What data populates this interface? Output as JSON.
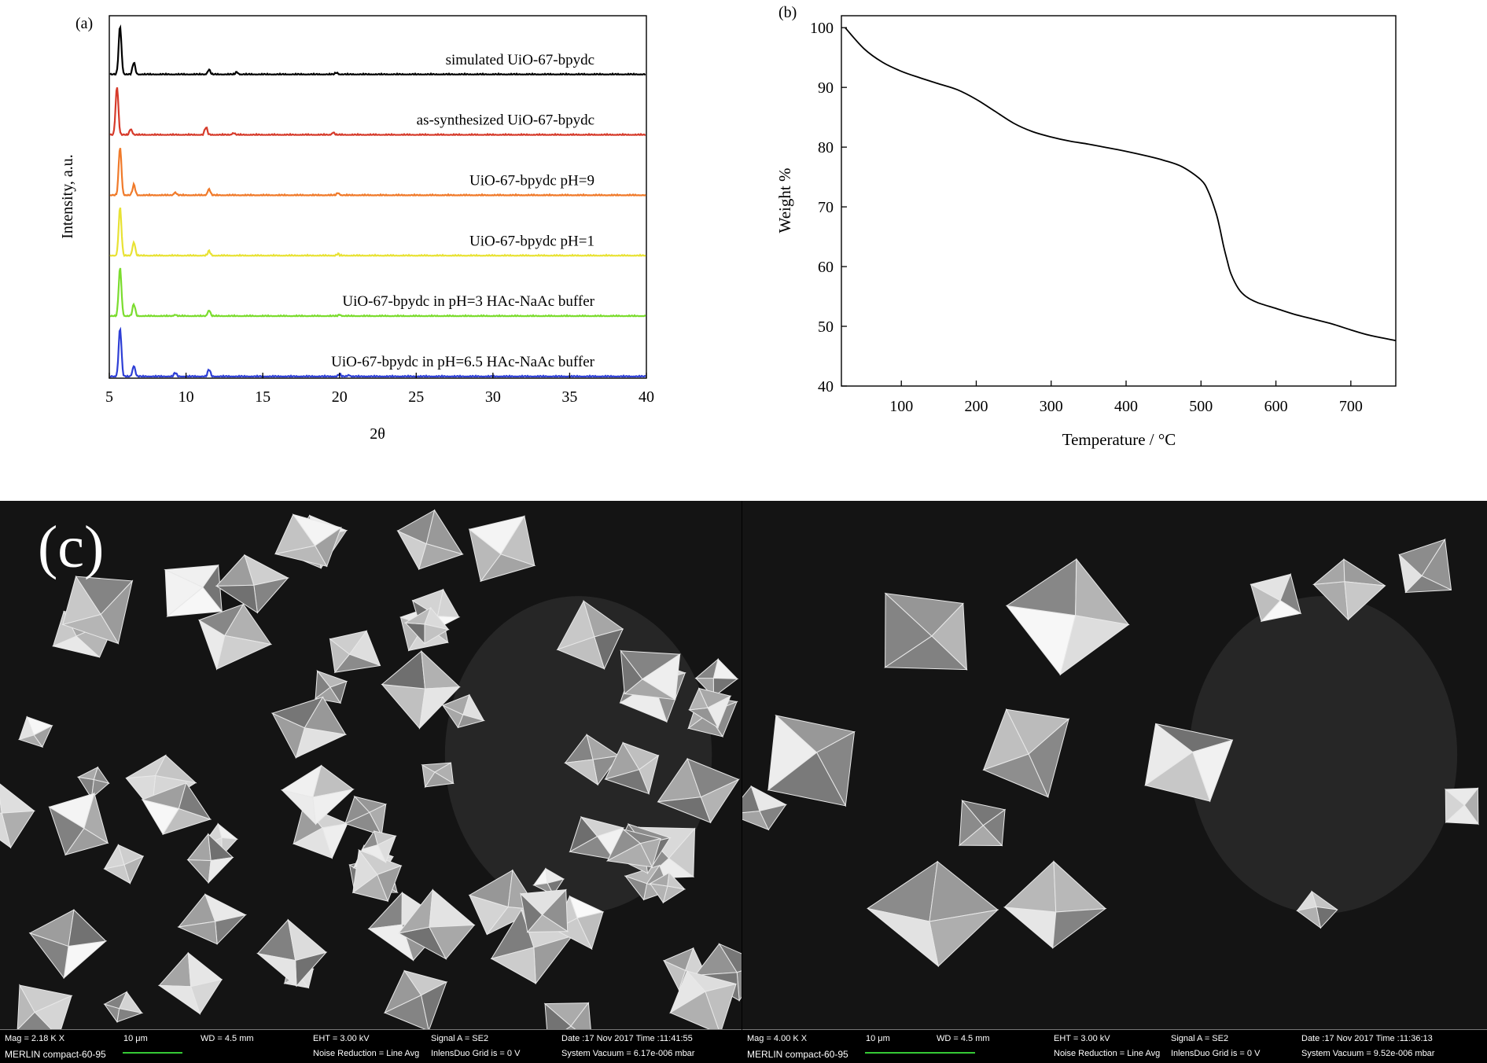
{
  "chart_data": [
    {
      "panel_label": "(a)",
      "type": "line",
      "xlabel": "2θ",
      "ylabel": "Intensity, a.u.",
      "xlim": [
        5,
        40
      ],
      "xticks": [
        5,
        10,
        15,
        20,
        25,
        30,
        35,
        40
      ],
      "grid": false,
      "series": [
        {
          "name": "simulated UiO-67-bpydc",
          "color": "#000000",
          "peaks": [
            [
              5.7,
              1.0
            ],
            [
              6.6,
              0.25
            ],
            [
              11.5,
              0.1
            ],
            [
              13.3,
              0.05
            ],
            [
              19.8,
              0.04
            ]
          ]
        },
        {
          "name": "as-synthesized UiO-67-bpydc",
          "color": "#d63a2a",
          "peaks": [
            [
              5.5,
              1.0
            ],
            [
              6.4,
              0.12
            ],
            [
              11.3,
              0.16
            ],
            [
              13.1,
              0.04
            ],
            [
              19.6,
              0.05
            ]
          ]
        },
        {
          "name": "UiO-67-bpydc pH=9",
          "color": "#f07a2a",
          "peaks": [
            [
              5.7,
              1.0
            ],
            [
              6.6,
              0.22
            ],
            [
              9.3,
              0.06
            ],
            [
              11.5,
              0.13
            ],
            [
              19.9,
              0.05
            ]
          ]
        },
        {
          "name": "UiO-67-bpydc pH=1",
          "color": "#e8e234",
          "peaks": [
            [
              5.7,
              1.0
            ],
            [
              6.6,
              0.28
            ],
            [
              11.5,
              0.1
            ],
            [
              19.9,
              0.04
            ]
          ]
        },
        {
          "name": "UiO-67-bpydc in pH=3 HAc-NaAc buffer",
          "color": "#7bdc2e",
          "peaks": [
            [
              5.7,
              1.0
            ],
            [
              6.6,
              0.25
            ],
            [
              9.3,
              0.03
            ],
            [
              11.5,
              0.12
            ],
            [
              20.0,
              0.03
            ]
          ]
        },
        {
          "name": "UiO-67-bpydc in pH=6.5 HAc-NaAc buffer",
          "color": "#2e3fd6",
          "peaks": [
            [
              5.7,
              1.0
            ],
            [
              6.6,
              0.22
            ],
            [
              9.3,
              0.08
            ],
            [
              11.5,
              0.15
            ],
            [
              20.0,
              0.05
            ],
            [
              20.6,
              0.03
            ]
          ]
        }
      ]
    },
    {
      "panel_label": "(b)",
      "type": "line",
      "xlabel": "Temperature / °C",
      "ylabel": "Weight %",
      "xlim": [
        20,
        760
      ],
      "ylim": [
        40,
        102
      ],
      "xticks": [
        100,
        200,
        300,
        400,
        500,
        600,
        700
      ],
      "yticks": [
        40,
        50,
        60,
        70,
        80,
        90,
        100
      ],
      "grid": false,
      "series": [
        {
          "name": "",
          "color": "#000000",
          "x": [
            25,
            50,
            75,
            100,
            125,
            150,
            175,
            200,
            225,
            250,
            275,
            300,
            325,
            350,
            375,
            400,
            425,
            450,
            475,
            500,
            510,
            520,
            525,
            530,
            535,
            540,
            550,
            560,
            575,
            600,
            625,
            650,
            675,
            700,
            725,
            760
          ],
          "y": [
            100,
            96.5,
            94.2,
            92.7,
            91.6,
            90.6,
            89.6,
            88.0,
            86.0,
            84.0,
            82.6,
            81.7,
            81.0,
            80.5,
            79.9,
            79.3,
            78.6,
            77.8,
            76.7,
            74.5,
            72.5,
            69.0,
            66.5,
            63.5,
            61.0,
            58.8,
            56.3,
            55.0,
            54.0,
            53.0,
            52.0,
            51.2,
            50.4,
            49.4,
            48.5,
            47.6
          ]
        }
      ]
    }
  ],
  "sem": {
    "panel_label": "(c)",
    "left": {
      "mag": "Mag =   2.18 K X",
      "scale": "10 μm",
      "wd": "WD =   4.5 mm",
      "eht": "EHT =   3.00 kV",
      "signal": "Signal A = SE2",
      "date": "Date :17 Nov 2017  Time :11:41:55",
      "instrument": "MERLIN compact-60-95",
      "noise": "Noise Reduction = Line Avg",
      "grid": "InlensDuo Grid is =      0 V",
      "vacuum": "System Vacuum = 6.17e-006 mbar"
    },
    "right": {
      "mag": "Mag =   4.00 K X",
      "scale": "10 μm",
      "wd": "WD =   4.5 mm",
      "eht": "EHT =   3.00 kV",
      "signal": "Signal A = SE2",
      "date": "Date :17 Nov 2017  Time :11:36:13",
      "instrument": "MERLIN compact-60-95",
      "noise": "Noise Reduction = Line Avg",
      "grid": "InlensDuo Grid is =      0 V",
      "vacuum": "System Vacuum = 9.52e-006 mbar"
    }
  }
}
